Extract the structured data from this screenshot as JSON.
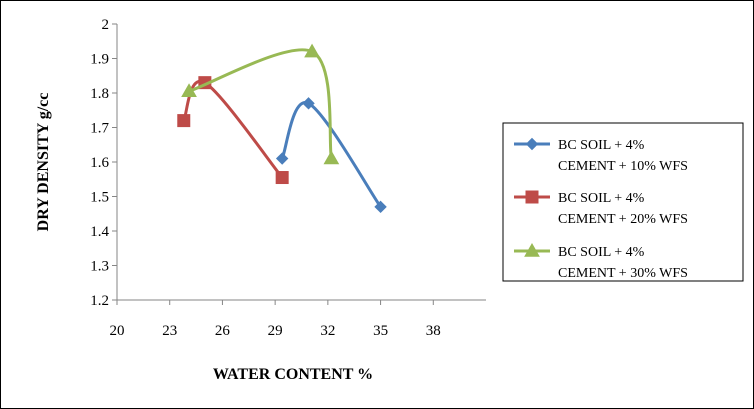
{
  "chart_data": {
    "type": "line",
    "title": "",
    "xlabel": "WATER CONTENT %",
    "ylabel": "DRY DENSITY g/cc",
    "xlim": [
      20,
      41
    ],
    "ylim": [
      1.2,
      2.0
    ],
    "x_ticks": [
      "20",
      "23",
      "26",
      "29",
      "32",
      "35",
      "38"
    ],
    "y_ticks": [
      "1.2",
      "1.3",
      "1.4",
      "1.5",
      "1.6",
      "1.7",
      "1.8",
      "1.9",
      "2"
    ],
    "grid": false,
    "legend_position": "right",
    "series": [
      {
        "name_lines": [
          "BC SOIL + 4%",
          "CEMENT + 10% WFS"
        ],
        "color": "#4a7ebb",
        "marker": "diamond",
        "points": [
          [
            29.4,
            1.61
          ],
          [
            30.9,
            1.77
          ],
          [
            35.0,
            1.47
          ]
        ]
      },
      {
        "name_lines": [
          "BC SOIL + 4%",
          "CEMENT + 20% WFS"
        ],
        "color": "#be4b48",
        "marker": "square",
        "points": [
          [
            23.8,
            1.72
          ],
          [
            25.0,
            1.83
          ],
          [
            29.4,
            1.555
          ]
        ]
      },
      {
        "name_lines": [
          "BC SOIL + 4%",
          "CEMENT + 30% WFS"
        ],
        "color": "#98b954",
        "marker": "triangle",
        "points": [
          [
            24.1,
            1.805
          ],
          [
            31.1,
            1.92
          ],
          [
            32.2,
            1.61
          ]
        ]
      }
    ]
  }
}
